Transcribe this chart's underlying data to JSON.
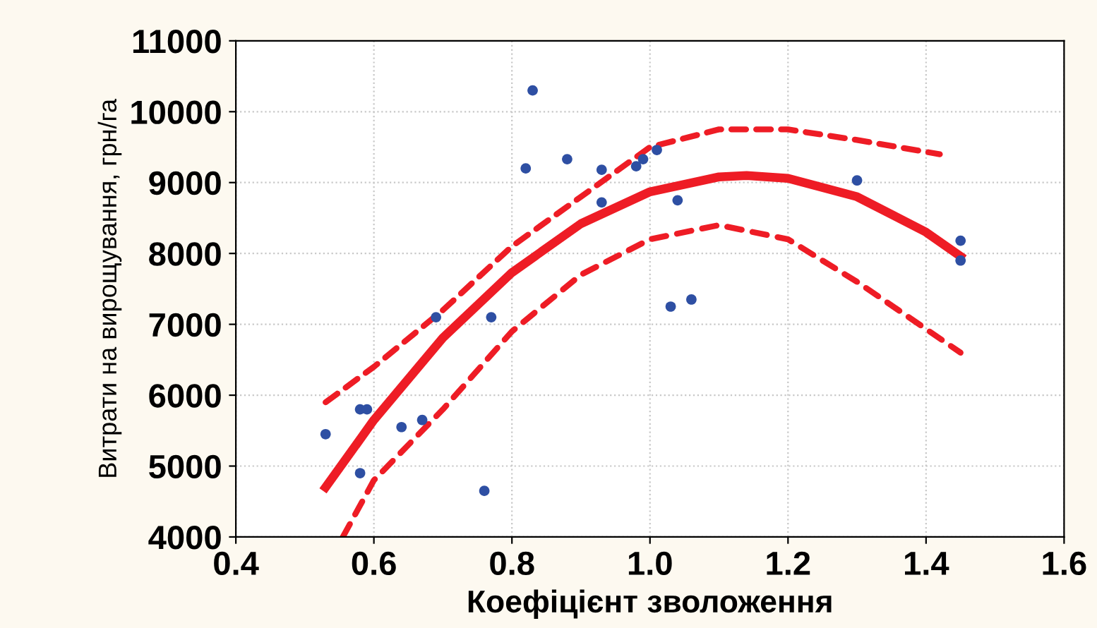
{
  "chart_data": {
    "type": "scatter",
    "xlabel": "Коефіцієнт зволоження",
    "ylabel": "Витрати на вирощування, грн/га",
    "xlim": [
      0.4,
      1.6
    ],
    "ylim": [
      4000,
      11000
    ],
    "xticks": [
      {
        "value": 0.4,
        "label": "0.4"
      },
      {
        "value": 0.6,
        "label": "0.6"
      },
      {
        "value": 0.8,
        "label": "0.8"
      },
      {
        "value": 1.0,
        "label": "1.0"
      },
      {
        "value": 1.2,
        "label": "1.2"
      },
      {
        "value": 1.4,
        "label": "1.4"
      },
      {
        "value": 1.6,
        "label": "1.6"
      }
    ],
    "yticks": [
      4000,
      5000,
      6000,
      7000,
      8000,
      9000,
      10000,
      11000
    ],
    "grid": true,
    "legend": false,
    "series": [
      {
        "color": "#2e4fa3",
        "marker": "circle",
        "x": [
          0.53,
          0.58,
          0.59,
          0.58,
          0.64,
          0.67,
          0.69,
          0.76,
          0.77,
          0.82,
          0.83,
          0.88,
          0.93,
          0.93,
          0.98,
          0.99,
          1.01,
          1.03,
          1.04,
          1.06,
          1.3,
          1.45,
          1.45
        ],
        "values": [
          5450,
          5800,
          5800,
          4900,
          5550,
          5650,
          7100,
          4650,
          7100,
          9200,
          10300,
          9330,
          9180,
          8720,
          9230,
          9330,
          9460,
          7250,
          8750,
          7350,
          9030,
          8180,
          7900
        ]
      },
      {
        "type": "line",
        "color": "#ee1c25",
        "line_style": "solid",
        "marker": "none",
        "x": [
          0.53,
          0.6,
          0.7,
          0.8,
          0.9,
          1.0,
          1.1,
          1.14,
          1.2,
          1.3,
          1.4,
          1.45
        ],
        "values": [
          4700,
          5650,
          6810,
          7730,
          8420,
          8870,
          9080,
          9100,
          9060,
          8800,
          8300,
          7960
        ]
      },
      {
        "type": "line",
        "color": "#ee1c25",
        "line_style": "dashed",
        "marker": "none",
        "x": [
          0.53,
          0.6,
          0.7,
          0.8,
          0.9,
          1.0,
          1.1,
          1.2,
          1.3,
          1.42
        ],
        "values": [
          5900,
          6400,
          7200,
          8100,
          8800,
          9500,
          9750,
          9750,
          9600,
          9400
        ]
      },
      {
        "type": "line",
        "color": "#ee1c25",
        "line_style": "dashed",
        "marker": "none",
        "x": [
          0.555,
          0.6,
          0.7,
          0.8,
          0.9,
          1.0,
          1.1,
          1.2,
          1.3,
          1.45
        ],
        "values": [
          4000,
          4800,
          5800,
          6900,
          7700,
          8200,
          8400,
          8200,
          7600,
          6600
        ]
      }
    ]
  }
}
